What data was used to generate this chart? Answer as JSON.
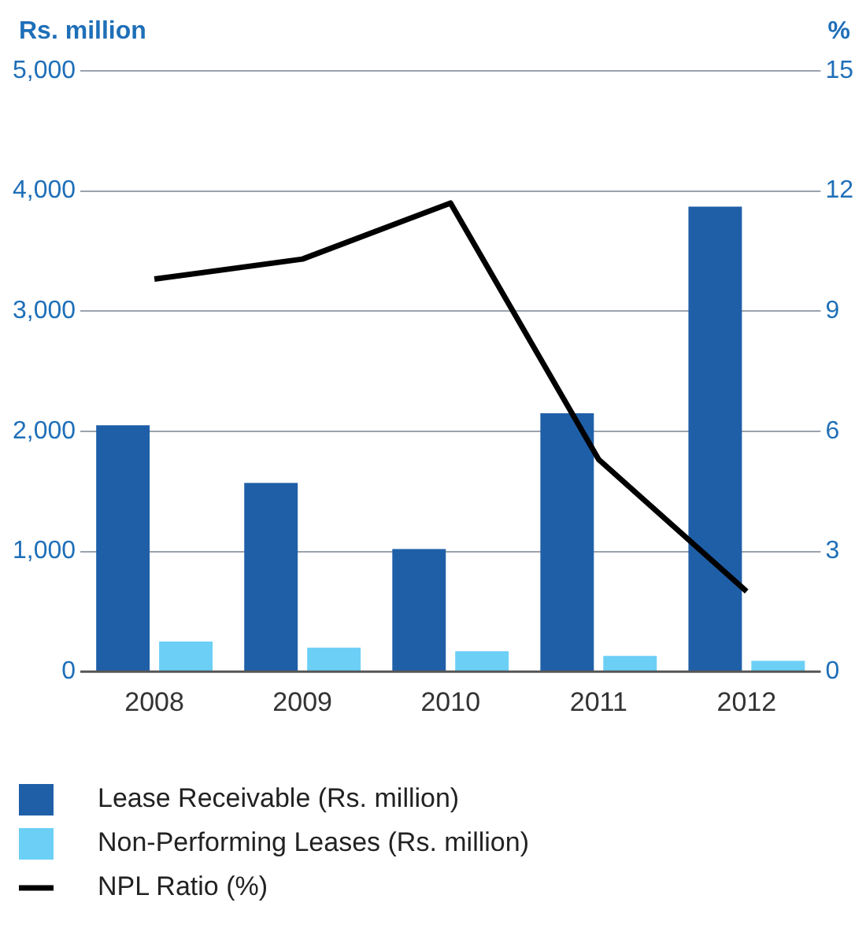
{
  "chart_data": {
    "type": "bar",
    "ylabel": "Rs. million",
    "y2label": "%",
    "categories": [
      "2008",
      "2009",
      "2010",
      "2011",
      "2012"
    ],
    "series": [
      {
        "name": "Lease Receivable (Rs. million)",
        "color": "#1f5fa8",
        "values": [
          2050,
          1570,
          1020,
          2150,
          3870
        ]
      },
      {
        "name": "Non-Performing Leases (Rs. million)",
        "color": "#6ccff6",
        "values": [
          250,
          200,
          170,
          130,
          90
        ]
      },
      {
        "name": "NPL Ratio (%)",
        "type": "line",
        "axis": "y2",
        "color": "#000000",
        "values": [
          9.8,
          10.3,
          11.7,
          5.3,
          2.0
        ]
      }
    ],
    "ylim": [
      0,
      5000
    ],
    "yticks": [
      {
        "value": 0,
        "label": "0"
      },
      {
        "value": 1000,
        "label": "1,000"
      },
      {
        "value": 2000,
        "label": "2,000"
      },
      {
        "value": 3000,
        "label": "3,000"
      },
      {
        "value": 4000,
        "label": "4,000"
      },
      {
        "value": 5000,
        "label": "5,000"
      }
    ],
    "y2lim": [
      0,
      15
    ],
    "y2ticks": [
      0,
      3,
      6,
      9,
      12,
      15
    ],
    "grid": "y",
    "legend": "bottom",
    "marker": "none",
    "line_style": "solid"
  }
}
